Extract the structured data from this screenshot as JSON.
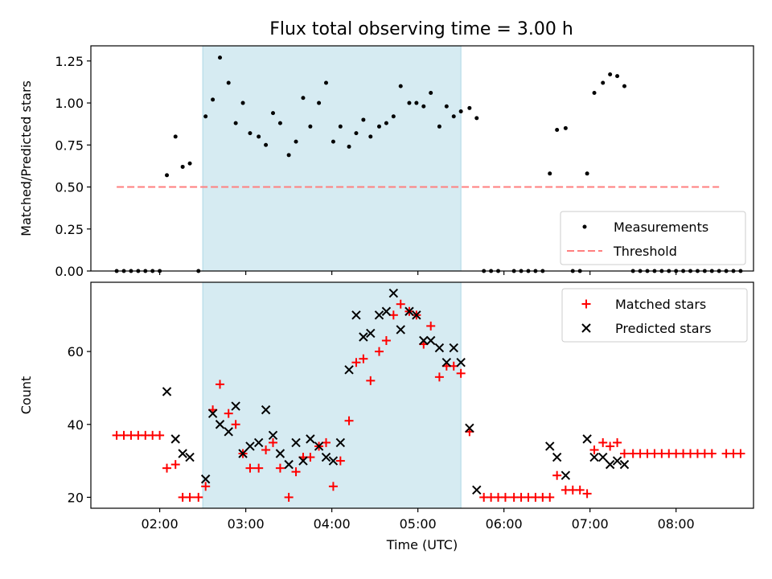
{
  "figure_title": "Flux total observing time = 3.00 h",
  "colors": {
    "highlight": "#add8e6",
    "threshold": "#ff7f7f",
    "measurement": "#000000",
    "matched": "#ff0000",
    "predicted": "#000000"
  },
  "chart_data": [
    {
      "type": "scatter",
      "title": "Flux total observing time = 3.00 h",
      "xlabel": "",
      "ylabel": "Matched/Predicted stars",
      "xlim": [
        "01:12",
        "08:54"
      ],
      "ylim": [
        0,
        1.34
      ],
      "y_ticks": [
        0.0,
        0.25,
        0.5,
        0.75,
        1.0,
        1.25
      ],
      "y_tick_labels": [
        "0.00",
        "0.25",
        "0.50",
        "0.75",
        "1.00",
        "1.25"
      ],
      "x_ticks": [
        "02:00",
        "03:00",
        "04:00",
        "05:00",
        "06:00",
        "07:00",
        "08:00"
      ],
      "x_tick_labels": [
        "",
        "",
        "",
        "",
        "",
        "",
        ""
      ],
      "highlight_span": [
        "02:30",
        "05:30"
      ],
      "legend_position": "lower-right",
      "legend": [
        "Measurements",
        "Threshold"
      ],
      "threshold": {
        "name": "Threshold",
        "y": 0.5,
        "x_range": [
          "01:30",
          "08:30"
        ]
      },
      "series": [
        {
          "name": "Measurements",
          "points": [
            [
              "01:30",
              0
            ],
            [
              "01:35",
              0
            ],
            [
              "01:40",
              0
            ],
            [
              "01:45",
              0
            ],
            [
              "01:50",
              0
            ],
            [
              "01:55",
              0
            ],
            [
              "02:00",
              0
            ],
            [
              "02:05",
              0.57
            ],
            [
              "02:11",
              0.8
            ],
            [
              "02:16",
              0.62
            ],
            [
              "02:21",
              0.64
            ],
            [
              "02:27",
              0
            ],
            [
              "02:32",
              0.92
            ],
            [
              "02:37",
              1.02
            ],
            [
              "02:42",
              1.27
            ],
            [
              "02:48",
              1.12
            ],
            [
              "02:53",
              0.88
            ],
            [
              "02:58",
              1.0
            ],
            [
              "03:03",
              0.82
            ],
            [
              "03:09",
              0.8
            ],
            [
              "03:14",
              0.75
            ],
            [
              "03:19",
              0.94
            ],
            [
              "03:24",
              0.88
            ],
            [
              "03:30",
              0.69
            ],
            [
              "03:35",
              0.77
            ],
            [
              "03:40",
              1.03
            ],
            [
              "03:45",
              0.86
            ],
            [
              "03:51",
              1.0
            ],
            [
              "03:56",
              1.12
            ],
            [
              "04:01",
              0.77
            ],
            [
              "04:06",
              0.86
            ],
            [
              "04:12",
              0.74
            ],
            [
              "04:17",
              0.82
            ],
            [
              "04:22",
              0.9
            ],
            [
              "04:27",
              0.8
            ],
            [
              "04:33",
              0.86
            ],
            [
              "04:38",
              0.88
            ],
            [
              "04:43",
              0.92
            ],
            [
              "04:48",
              1.1
            ],
            [
              "04:54",
              1.0
            ],
            [
              "04:59",
              1.0
            ],
            [
              "05:04",
              0.98
            ],
            [
              "05:09",
              1.06
            ],
            [
              "05:15",
              0.86
            ],
            [
              "05:20",
              0.98
            ],
            [
              "05:25",
              0.92
            ],
            [
              "05:30",
              0.95
            ],
            [
              "05:36",
              0.97
            ],
            [
              "05:41",
              0.91
            ],
            [
              "05:46",
              0
            ],
            [
              "05:51",
              0
            ],
            [
              "05:56",
              0
            ],
            [
              "06:07",
              0
            ],
            [
              "06:12",
              0
            ],
            [
              "06:17",
              0
            ],
            [
              "06:22",
              0
            ],
            [
              "06:27",
              0
            ],
            [
              "06:32",
              0.58
            ],
            [
              "06:37",
              0.84
            ],
            [
              "06:43",
              0.85
            ],
            [
              "06:48",
              0
            ],
            [
              "06:53",
              0
            ],
            [
              "06:58",
              0.58
            ],
            [
              "07:03",
              1.06
            ],
            [
              "07:09",
              1.12
            ],
            [
              "07:14",
              1.17
            ],
            [
              "07:19",
              1.16
            ],
            [
              "07:24",
              1.1
            ],
            [
              "07:30",
              0
            ],
            [
              "07:35",
              0
            ],
            [
              "07:40",
              0
            ],
            [
              "07:45",
              0
            ],
            [
              "07:50",
              0
            ],
            [
              "07:55",
              0
            ],
            [
              "08:00",
              0
            ],
            [
              "08:05",
              0
            ],
            [
              "08:10",
              0
            ],
            [
              "08:15",
              0
            ],
            [
              "08:20",
              0
            ],
            [
              "08:25",
              0
            ],
            [
              "08:30",
              0
            ],
            [
              "08:35",
              0
            ],
            [
              "08:40",
              0
            ],
            [
              "08:45",
              0
            ]
          ]
        }
      ]
    },
    {
      "type": "scatter",
      "title": "",
      "xlabel": "Time (UTC)",
      "ylabel": "Count",
      "xlim": [
        "01:12",
        "08:54"
      ],
      "ylim": [
        17,
        79
      ],
      "y_ticks": [
        20,
        40,
        60
      ],
      "y_tick_labels": [
        "20",
        "40",
        "60"
      ],
      "x_ticks": [
        "02:00",
        "03:00",
        "04:00",
        "05:00",
        "06:00",
        "07:00",
        "08:00"
      ],
      "x_tick_labels": [
        "02:00",
        "03:00",
        "04:00",
        "05:00",
        "06:00",
        "07:00",
        "08:00"
      ],
      "highlight_span": [
        "02:30",
        "05:30"
      ],
      "legend_position": "upper-right",
      "legend": [
        "Matched stars",
        "Predicted stars"
      ],
      "series": [
        {
          "name": "Matched stars",
          "points": [
            [
              "01:30",
              37
            ],
            [
              "01:35",
              37
            ],
            [
              "01:40",
              37
            ],
            [
              "01:45",
              37
            ],
            [
              "01:50",
              37
            ],
            [
              "01:55",
              37
            ],
            [
              "02:00",
              37
            ],
            [
              "02:05",
              28
            ],
            [
              "02:11",
              29
            ],
            [
              "02:16",
              20
            ],
            [
              "02:21",
              20
            ],
            [
              "02:27",
              20
            ],
            [
              "02:32",
              23
            ],
            [
              "02:37",
              44
            ],
            [
              "02:42",
              51
            ],
            [
              "02:48",
              43
            ],
            [
              "02:53",
              40
            ],
            [
              "02:58",
              32
            ],
            [
              "03:03",
              28
            ],
            [
              "03:09",
              28
            ],
            [
              "03:14",
              33
            ],
            [
              "03:19",
              35
            ],
            [
              "03:24",
              28
            ],
            [
              "03:30",
              20
            ],
            [
              "03:35",
              27
            ],
            [
              "03:40",
              31
            ],
            [
              "03:45",
              31
            ],
            [
              "03:51",
              34
            ],
            [
              "03:56",
              35
            ],
            [
              "04:01",
              23
            ],
            [
              "04:06",
              30
            ],
            [
              "04:12",
              41
            ],
            [
              "04:17",
              57
            ],
            [
              "04:22",
              58
            ],
            [
              "04:27",
              52
            ],
            [
              "04:33",
              60
            ],
            [
              "04:38",
              63
            ],
            [
              "04:43",
              70
            ],
            [
              "04:48",
              73
            ],
            [
              "04:54",
              71
            ],
            [
              "04:59",
              70
            ],
            [
              "05:04",
              62
            ],
            [
              "05:09",
              67
            ],
            [
              "05:15",
              53
            ],
            [
              "05:20",
              56
            ],
            [
              "05:25",
              56
            ],
            [
              "05:30",
              54
            ],
            [
              "05:36",
              38
            ],
            [
              "05:46",
              20
            ],
            [
              "05:51",
              20
            ],
            [
              "05:56",
              20
            ],
            [
              "06:01",
              20
            ],
            [
              "06:07",
              20
            ],
            [
              "06:12",
              20
            ],
            [
              "06:17",
              20
            ],
            [
              "06:22",
              20
            ],
            [
              "06:27",
              20
            ],
            [
              "06:32",
              20
            ],
            [
              "06:37",
              26
            ],
            [
              "06:43",
              22
            ],
            [
              "06:48",
              22
            ],
            [
              "06:53",
              22
            ],
            [
              "06:58",
              21
            ],
            [
              "07:03",
              33
            ],
            [
              "07:09",
              35
            ],
            [
              "07:14",
              34
            ],
            [
              "07:19",
              35
            ],
            [
              "07:24",
              32
            ],
            [
              "07:30",
              32
            ],
            [
              "07:35",
              32
            ],
            [
              "07:40",
              32
            ],
            [
              "07:45",
              32
            ],
            [
              "07:50",
              32
            ],
            [
              "07:55",
              32
            ],
            [
              "08:00",
              32
            ],
            [
              "08:05",
              32
            ],
            [
              "08:10",
              32
            ],
            [
              "08:15",
              32
            ],
            [
              "08:20",
              32
            ],
            [
              "08:25",
              32
            ],
            [
              "08:35",
              32
            ],
            [
              "08:40",
              32
            ],
            [
              "08:45",
              32
            ]
          ]
        },
        {
          "name": "Predicted stars",
          "points": [
            [
              "02:05",
              49
            ],
            [
              "02:11",
              36
            ],
            [
              "02:16",
              32
            ],
            [
              "02:21",
              31
            ],
            [
              "02:32",
              25
            ],
            [
              "02:37",
              43
            ],
            [
              "02:42",
              40
            ],
            [
              "02:48",
              38
            ],
            [
              "02:53",
              45
            ],
            [
              "02:58",
              32
            ],
            [
              "03:03",
              34
            ],
            [
              "03:09",
              35
            ],
            [
              "03:14",
              44
            ],
            [
              "03:19",
              37
            ],
            [
              "03:24",
              32
            ],
            [
              "03:30",
              29
            ],
            [
              "03:35",
              35
            ],
            [
              "03:40",
              30
            ],
            [
              "03:45",
              36
            ],
            [
              "03:51",
              34
            ],
            [
              "03:56",
              31
            ],
            [
              "04:01",
              30
            ],
            [
              "04:06",
              35
            ],
            [
              "04:12",
              55
            ],
            [
              "04:17",
              70
            ],
            [
              "04:22",
              64
            ],
            [
              "04:27",
              65
            ],
            [
              "04:33",
              70
            ],
            [
              "04:38",
              71
            ],
            [
              "04:43",
              76
            ],
            [
              "04:48",
              66
            ],
            [
              "04:54",
              71
            ],
            [
              "04:59",
              70
            ],
            [
              "05:04",
              63
            ],
            [
              "05:09",
              63
            ],
            [
              "05:15",
              61
            ],
            [
              "05:20",
              57
            ],
            [
              "05:25",
              61
            ],
            [
              "05:30",
              57
            ],
            [
              "05:36",
              39
            ],
            [
              "05:41",
              22
            ],
            [
              "06:32",
              34
            ],
            [
              "06:37",
              31
            ],
            [
              "06:43",
              26
            ],
            [
              "06:58",
              36
            ],
            [
              "07:03",
              31
            ],
            [
              "07:09",
              31
            ],
            [
              "07:14",
              29
            ],
            [
              "07:19",
              30
            ],
            [
              "07:24",
              29
            ]
          ]
        }
      ]
    }
  ]
}
